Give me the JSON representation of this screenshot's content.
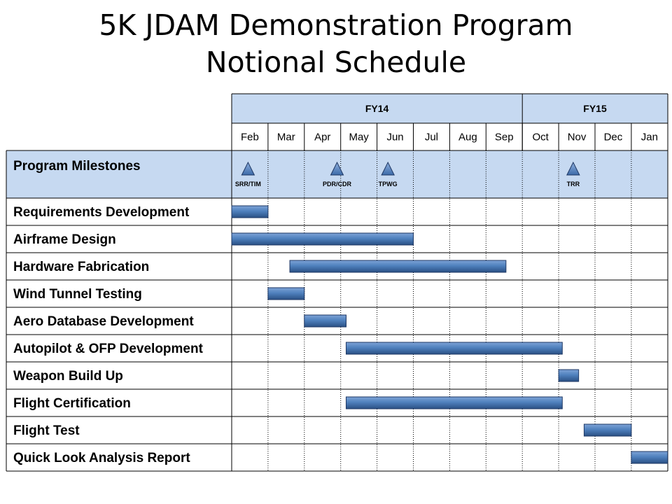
{
  "title": {
    "line1": "5K JDAM Demonstration Program",
    "line2": "Notional Schedule"
  },
  "colors": {
    "header_fill": "#c6d9f1",
    "bar_fill": "#4f81bd",
    "bar_stroke": "#1f3864",
    "grid": "#000000"
  },
  "chart_data": {
    "type": "gantt",
    "title": "5K JDAM Demonstration Program Notional Schedule",
    "fiscal_years": [
      {
        "label": "FY14",
        "start_month": 0,
        "span": 8
      },
      {
        "label": "FY15",
        "start_month": 8,
        "span": 4
      }
    ],
    "months": [
      "Feb",
      "Mar",
      "Apr",
      "May",
      "Jun",
      "Jul",
      "Aug",
      "Sep",
      "Oct",
      "Nov",
      "Dec",
      "Jan"
    ],
    "milestones_row_label": "Program Milestones",
    "milestones": [
      {
        "label": "SRR/TIM",
        "month": 0.45
      },
      {
        "label": "PDR/CDR",
        "month": 2.9
      },
      {
        "label": "TPWG",
        "month": 4.3
      },
      {
        "label": "TRR",
        "month": 9.4
      }
    ],
    "tasks": [
      {
        "name": "Requirements Development",
        "start": 0.0,
        "end": 1.0
      },
      {
        "name": "Airframe Design",
        "start": 0.0,
        "end": 5.0
      },
      {
        "name": "Hardware Fabrication",
        "start": 1.6,
        "end": 7.55
      },
      {
        "name": "Wind Tunnel Testing",
        "start": 1.0,
        "end": 2.0
      },
      {
        "name": "Aero Database Development",
        "start": 2.0,
        "end": 3.15
      },
      {
        "name": "Autopilot & OFP Development",
        "start": 3.15,
        "end": 9.1
      },
      {
        "name": "Weapon Build Up",
        "start": 9.0,
        "end": 9.55
      },
      {
        "name": "Flight Certification",
        "start": 3.15,
        "end": 9.1
      },
      {
        "name": "Flight Test",
        "start": 9.7,
        "end": 11.0
      },
      {
        "name": "Quick Look Analysis Report",
        "start": 11.0,
        "end": 12.0
      }
    ]
  }
}
